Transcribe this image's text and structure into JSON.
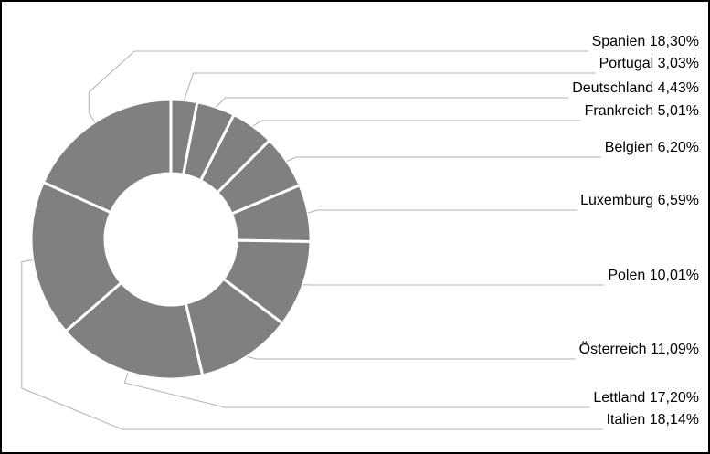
{
  "chart_data": {
    "type": "donut",
    "categories": [
      "Portugal",
      "Deutschland",
      "Frankreich",
      "Belgien",
      "Luxemburg",
      "Polen",
      "Österreich",
      "Lettland",
      "Italien",
      "Spanien"
    ],
    "values": [
      3.03,
      4.43,
      5.01,
      6.2,
      6.59,
      10.01,
      11.09,
      17.2,
      18.14,
      18.3
    ],
    "value_labels": [
      "3,03%",
      "4,43%",
      "5,01%",
      "6,20%",
      "6,59%",
      "10,01%",
      "11,09%",
      "17,20%",
      "18,14%",
      "18,30%"
    ],
    "color": "#808080"
  }
}
